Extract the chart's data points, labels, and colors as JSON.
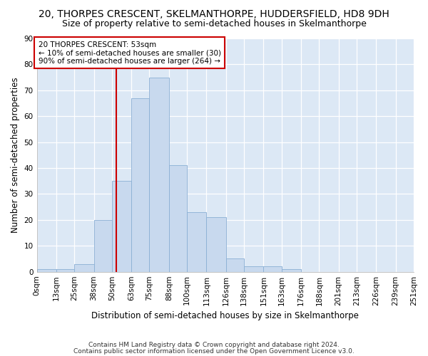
{
  "title": "20, THORPES CRESCENT, SKELMANTHORPE, HUDDERSFIELD, HD8 9DH",
  "subtitle": "Size of property relative to semi-detached houses in Skelmanthorpe",
  "xlabel": "Distribution of semi-detached houses by size in Skelmanthorpe",
  "ylabel": "Number of semi-detached properties",
  "footer1": "Contains HM Land Registry data © Crown copyright and database right 2024.",
  "footer2": "Contains public sector information licensed under the Open Government Licence v3.0.",
  "bin_edges": [
    0,
    13,
    25,
    38,
    50,
    63,
    75,
    88,
    100,
    113,
    126,
    138,
    151,
    163,
    176,
    188,
    201,
    213,
    226,
    239,
    251
  ],
  "bin_labels": [
    "0sqm",
    "13sqm",
    "25sqm",
    "38sqm",
    "50sqm",
    "63sqm",
    "75sqm",
    "88sqm",
    "100sqm",
    "113sqm",
    "126sqm",
    "138sqm",
    "151sqm",
    "163sqm",
    "176sqm",
    "188sqm",
    "201sqm",
    "213sqm",
    "226sqm",
    "239sqm",
    "251sqm"
  ],
  "counts": [
    1,
    1,
    3,
    20,
    35,
    67,
    75,
    41,
    23,
    21,
    5,
    2,
    2,
    1,
    0,
    0,
    0,
    0,
    0,
    0
  ],
  "bar_color": "#c8d9ee",
  "bar_edge_color": "#8aafd4",
  "vline_x": 53,
  "vline_color": "#cc0000",
  "annotation_text": "20 THORPES CRESCENT: 53sqm\n← 10% of semi-detached houses are smaller (30)\n90% of semi-detached houses are larger (264) →",
  "annotation_box_color": "#cc0000",
  "ylim": [
    0,
    90
  ],
  "yticks": [
    0,
    10,
    20,
    30,
    40,
    50,
    60,
    70,
    80,
    90
  ],
  "bg_color": "#ffffff",
  "plot_bg_color": "#dce8f5",
  "grid_color": "#ffffff",
  "title_fontsize": 10,
  "subtitle_fontsize": 9,
  "axis_label_fontsize": 8.5,
  "tick_fontsize": 7.5,
  "footer_fontsize": 6.5
}
